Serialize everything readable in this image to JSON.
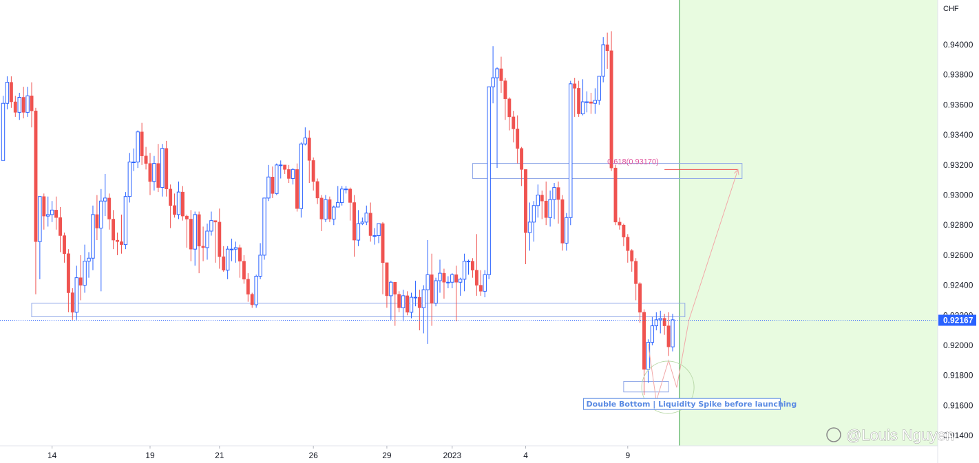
{
  "chart_data": {
    "type": "candlestick",
    "currency_label": "CHF",
    "last_price": "0.92167",
    "ylim": [
      0.914,
      0.9425
    ],
    "y_ticks": [
      "0.94000",
      "0.93800",
      "0.93600",
      "0.93400",
      "0.93200",
      "0.93000",
      "0.92800",
      "0.92600",
      "0.92400",
      "0.92200",
      "0.92000",
      "0.91800",
      "0.91600",
      "0.91400"
    ],
    "x_tick_labels": [
      {
        "label": "14",
        "bar": 12
      },
      {
        "label": "19",
        "bar": 36
      },
      {
        "label": "21",
        "bar": 53
      },
      {
        "label": "26",
        "bar": 76
      },
      {
        "label": "29",
        "bar": 94
      },
      {
        "label": "2023",
        "bar": 110
      },
      {
        "label": "4",
        "bar": 128
      },
      {
        "label": "9",
        "bar": 153
      }
    ],
    "candles": [
      [
        0.9323,
        0.9361,
        0.9323,
        0.9366
      ],
      [
        0.9361,
        0.9375,
        0.9357,
        0.9379
      ],
      [
        0.9375,
        0.9362,
        0.9358,
        0.9379
      ],
      [
        0.9362,
        0.9355,
        0.9352,
        0.9366
      ],
      [
        0.9355,
        0.9365,
        0.935,
        0.9368
      ],
      [
        0.9365,
        0.9355,
        0.9351,
        0.9372
      ],
      [
        0.9355,
        0.9366,
        0.9352,
        0.9372
      ],
      [
        0.9366,
        0.9356,
        0.9345,
        0.9375
      ],
      [
        0.9356,
        0.9269,
        0.9234,
        0.9358
      ],
      [
        0.9269,
        0.9299,
        0.9244,
        0.9299
      ],
      [
        0.9299,
        0.9286,
        0.9277,
        0.9301
      ],
      [
        0.9286,
        0.9287,
        0.9279,
        0.9299
      ],
      [
        0.9287,
        0.929,
        0.9282,
        0.9296
      ],
      [
        0.929,
        0.9285,
        0.9277,
        0.9299
      ],
      [
        0.9285,
        0.9273,
        0.9262,
        0.9292
      ],
      [
        0.9273,
        0.9261,
        0.9255,
        0.9275
      ],
      [
        0.9261,
        0.9235,
        0.9222,
        0.9264
      ],
      [
        0.9235,
        0.9222,
        0.9217,
        0.9238
      ],
      [
        0.9222,
        0.9245,
        0.9217,
        0.9253
      ],
      [
        0.9245,
        0.924,
        0.923,
        0.926
      ],
      [
        0.924,
        0.9256,
        0.9235,
        0.9267
      ],
      [
        0.9256,
        0.9258,
        0.9245,
        0.9262
      ],
      [
        0.9258,
        0.9287,
        0.925,
        0.9293
      ],
      [
        0.9287,
        0.9278,
        0.927,
        0.93
      ],
      [
        0.9278,
        0.9296,
        0.9236,
        0.9304
      ],
      [
        0.9296,
        0.9298,
        0.9286,
        0.9314
      ],
      [
        0.9298,
        0.9284,
        0.9277,
        0.9301
      ],
      [
        0.9284,
        0.927,
        0.9264,
        0.929
      ],
      [
        0.927,
        0.9269,
        0.926,
        0.9275
      ],
      [
        0.9269,
        0.9267,
        0.9261,
        0.9287
      ],
      [
        0.9267,
        0.9299,
        0.9264,
        0.9302
      ],
      [
        0.9299,
        0.9322,
        0.9295,
        0.9328
      ],
      [
        0.9322,
        0.9322,
        0.9316,
        0.9331
      ],
      [
        0.9322,
        0.9342,
        0.9318,
        0.9343
      ],
      [
        0.9342,
        0.9326,
        0.932,
        0.9348
      ],
      [
        0.9326,
        0.9321,
        0.9317,
        0.9332
      ],
      [
        0.9321,
        0.9309,
        0.93,
        0.9328
      ],
      [
        0.9309,
        0.9321,
        0.9303,
        0.9326
      ],
      [
        0.9321,
        0.9305,
        0.9302,
        0.9334
      ],
      [
        0.9305,
        0.9331,
        0.9299,
        0.9334
      ],
      [
        0.9331,
        0.9304,
        0.9299,
        0.9336
      ],
      [
        0.9304,
        0.9293,
        0.9278,
        0.9307
      ],
      [
        0.9293,
        0.9287,
        0.9285,
        0.9301
      ],
      [
        0.9287,
        0.9302,
        0.9284,
        0.9309
      ],
      [
        0.9302,
        0.9286,
        0.9283,
        0.9306
      ],
      [
        0.9286,
        0.9284,
        0.9265,
        0.9287
      ],
      [
        0.9284,
        0.9264,
        0.9256,
        0.929
      ],
      [
        0.9264,
        0.9287,
        0.9253,
        0.9289
      ],
      [
        0.9287,
        0.9266,
        0.9248,
        0.9289
      ],
      [
        0.9266,
        0.9265,
        0.9256,
        0.9279
      ],
      [
        0.9265,
        0.9276,
        0.9257,
        0.9281
      ],
      [
        0.9276,
        0.9283,
        0.9273,
        0.9289
      ],
      [
        0.9283,
        0.9282,
        0.9255,
        0.9283
      ],
      [
        0.9282,
        0.9259,
        0.9251,
        0.9291
      ],
      [
        0.9259,
        0.925,
        0.9249,
        0.9266
      ],
      [
        0.925,
        0.9264,
        0.9244,
        0.9266
      ],
      [
        0.9264,
        0.9264,
        0.9256,
        0.9271
      ],
      [
        0.9264,
        0.9265,
        0.9255,
        0.9269
      ],
      [
        0.9265,
        0.9256,
        0.9245,
        0.9267
      ],
      [
        0.9256,
        0.9244,
        0.9241,
        0.926
      ],
      [
        0.9244,
        0.9234,
        0.9229,
        0.9248
      ],
      [
        0.9234,
        0.9227,
        0.9225,
        0.9235
      ],
      [
        0.9227,
        0.9246,
        0.9225,
        0.9247
      ],
      [
        0.9246,
        0.926,
        0.9244,
        0.9268
      ],
      [
        0.926,
        0.9298,
        0.9257,
        0.9298
      ],
      [
        0.9298,
        0.9312,
        0.9296,
        0.932
      ],
      [
        0.9312,
        0.9301,
        0.9298,
        0.9319
      ],
      [
        0.9301,
        0.932,
        0.93,
        0.9321
      ],
      [
        0.932,
        0.932,
        0.9311,
        0.9323
      ],
      [
        0.932,
        0.9317,
        0.9314,
        0.932
      ],
      [
        0.9317,
        0.9311,
        0.9308,
        0.932
      ],
      [
        0.9311,
        0.9317,
        0.9307,
        0.9318
      ],
      [
        0.9317,
        0.9291,
        0.9289,
        0.9321
      ],
      [
        0.9291,
        0.9334,
        0.9285,
        0.9335
      ],
      [
        0.9334,
        0.9338,
        0.9333,
        0.9345
      ],
      [
        0.9338,
        0.9323,
        0.9308,
        0.9343
      ],
      [
        0.9323,
        0.9309,
        0.9303,
        0.9325
      ],
      [
        0.9309,
        0.9298,
        0.9294,
        0.9311
      ],
      [
        0.9298,
        0.9284,
        0.9276,
        0.93
      ],
      [
        0.9284,
        0.9297,
        0.9282,
        0.93
      ],
      [
        0.9297,
        0.9284,
        0.9282,
        0.9299
      ],
      [
        0.9284,
        0.9292,
        0.928,
        0.9293
      ],
      [
        0.9292,
        0.9295,
        0.9292,
        0.9306
      ],
      [
        0.9295,
        0.9304,
        0.9293,
        0.9306
      ],
      [
        0.9304,
        0.9304,
        0.9301,
        0.9306
      ],
      [
        0.9304,
        0.9295,
        0.9283,
        0.9305
      ],
      [
        0.9295,
        0.927,
        0.9259,
        0.93
      ],
      [
        0.927,
        0.9281,
        0.9266,
        0.929
      ],
      [
        0.9281,
        0.9282,
        0.928,
        0.9285
      ],
      [
        0.9282,
        0.9288,
        0.928,
        0.9293
      ],
      [
        0.9288,
        0.9273,
        0.9269,
        0.9295
      ],
      [
        0.9273,
        0.9273,
        0.9267,
        0.9278
      ],
      [
        0.9273,
        0.9281,
        0.9268,
        0.9281
      ],
      [
        0.9281,
        0.9255,
        0.9234,
        0.9282
      ],
      [
        0.9255,
        0.9233,
        0.9225,
        0.9255
      ],
      [
        0.9233,
        0.9242,
        0.9217,
        0.9243
      ],
      [
        0.9242,
        0.9234,
        0.9213,
        0.9242
      ],
      [
        0.9234,
        0.9225,
        0.9222,
        0.9236
      ],
      [
        0.9225,
        0.9233,
        0.9216,
        0.9237
      ],
      [
        0.9233,
        0.9222,
        0.922,
        0.9236
      ],
      [
        0.9222,
        0.9232,
        0.9218,
        0.9235
      ],
      [
        0.9232,
        0.9232,
        0.9226,
        0.9243
      ],
      [
        0.9232,
        0.9225,
        0.921,
        0.9237
      ],
      [
        0.9225,
        0.9237,
        0.9208,
        0.924
      ],
      [
        0.9237,
        0.9247,
        0.9201,
        0.927
      ],
      [
        0.9247,
        0.9228,
        0.9213,
        0.9261
      ],
      [
        0.9228,
        0.9243,
        0.9226,
        0.9245
      ],
      [
        0.9243,
        0.9248,
        0.9235,
        0.9257
      ],
      [
        0.9248,
        0.9242,
        0.9231,
        0.9251
      ],
      [
        0.9242,
        0.9242,
        0.9238,
        0.9246
      ],
      [
        0.9242,
        0.9247,
        0.9238,
        0.9248
      ],
      [
        0.9247,
        0.9242,
        0.9216,
        0.9253
      ],
      [
        0.9242,
        0.9244,
        0.9233,
        0.9245
      ],
      [
        0.9244,
        0.9256,
        0.9236,
        0.9261
      ],
      [
        0.9256,
        0.9256,
        0.9247,
        0.9257
      ],
      [
        0.9256,
        0.925,
        0.9245,
        0.9258
      ],
      [
        0.925,
        0.924,
        0.9233,
        0.9274
      ],
      [
        0.924,
        0.9236,
        0.9233,
        0.925
      ],
      [
        0.9236,
        0.9247,
        0.9232,
        0.925
      ],
      [
        0.9247,
        0.9372,
        0.9244,
        0.9372
      ],
      [
        0.9372,
        0.9378,
        0.9361,
        0.9399
      ],
      [
        0.9378,
        0.9384,
        0.9318,
        0.9385
      ],
      [
        0.9384,
        0.9376,
        0.9368,
        0.9392
      ],
      [
        0.9376,
        0.9364,
        0.935,
        0.9378
      ],
      [
        0.9364,
        0.9352,
        0.9343,
        0.9365
      ],
      [
        0.9352,
        0.9344,
        0.9335,
        0.9356
      ],
      [
        0.9344,
        0.9331,
        0.9321,
        0.9353
      ],
      [
        0.9331,
        0.9317,
        0.9306,
        0.9332
      ],
      [
        0.9317,
        0.9275,
        0.9254,
        0.9317
      ],
      [
        0.9275,
        0.9282,
        0.9263,
        0.9295
      ],
      [
        0.9282,
        0.9293,
        0.9269,
        0.9296
      ],
      [
        0.9293,
        0.93,
        0.9285,
        0.9307
      ],
      [
        0.93,
        0.9296,
        0.9284,
        0.9303
      ],
      [
        0.9296,
        0.9285,
        0.928,
        0.9309
      ],
      [
        0.9285,
        0.9297,
        0.9279,
        0.9303
      ],
      [
        0.9297,
        0.9305,
        0.9284,
        0.9308
      ],
      [
        0.9305,
        0.9297,
        0.9281,
        0.9309
      ],
      [
        0.9297,
        0.9268,
        0.9263,
        0.93
      ],
      [
        0.9268,
        0.9285,
        0.9263,
        0.9288
      ],
      [
        0.9285,
        0.9374,
        0.928,
        0.9376
      ],
      [
        0.9374,
        0.9371,
        0.9352,
        0.9378
      ],
      [
        0.9371,
        0.9354,
        0.9352,
        0.9376
      ],
      [
        0.9354,
        0.9362,
        0.9353,
        0.9377
      ],
      [
        0.9362,
        0.9362,
        0.9355,
        0.9369
      ],
      [
        0.9362,
        0.9361,
        0.9354,
        0.9368
      ],
      [
        0.9361,
        0.9363,
        0.9354,
        0.9371
      ],
      [
        0.9363,
        0.9379,
        0.936,
        0.9379
      ],
      [
        0.9379,
        0.94,
        0.9375,
        0.9405
      ],
      [
        0.94,
        0.9396,
        0.9384,
        0.9408
      ],
      [
        0.9396,
        0.9318,
        0.9316,
        0.9409
      ],
      [
        0.9318,
        0.9282,
        0.928,
        0.932
      ],
      [
        0.9282,
        0.928,
        0.9277,
        0.9285
      ],
      [
        0.928,
        0.9272,
        0.9266,
        0.9281
      ],
      [
        0.9272,
        0.9263,
        0.9255,
        0.9274
      ],
      [
        0.9263,
        0.9256,
        0.9249,
        0.9264
      ],
      [
        0.9256,
        0.9241,
        0.923,
        0.9258
      ],
      [
        0.9241,
        0.9222,
        0.9215,
        0.9242
      ],
      [
        0.9222,
        0.9184,
        0.9167,
        0.9224
      ],
      [
        0.9184,
        0.9202,
        0.9175,
        0.9204
      ],
      [
        0.9202,
        0.9213,
        0.92,
        0.9219
      ],
      [
        0.9213,
        0.9217,
        0.921,
        0.9222
      ],
      [
        0.9217,
        0.9218,
        0.9208,
        0.9223
      ],
      [
        0.9218,
        0.9213,
        0.9207,
        0.9221
      ],
      [
        0.9213,
        0.9199,
        0.9193,
        0.9222
      ],
      [
        0.9199,
        0.9217,
        0.9196,
        0.9221
      ]
    ],
    "zones": [
      {
        "y_top": 0.9228,
        "y_bottom": 0.9219,
        "bar_start": 7,
        "bar_end": 167
      },
      {
        "y_top": 0.9321,
        "y_bottom": 0.9311,
        "bar_start": 115,
        "bar_end": 181
      },
      {
        "y_top": 0.9176,
        "y_bottom": 0.9169,
        "bar_start": 152,
        "bar_end": 163
      }
    ],
    "fib_label": "0.618(0.93170)",
    "fib_value": 0.9317,
    "note": "Double Bottom | Liquidity Spike before launching",
    "projection_path": [
      [
        0.9201,
        158
      ],
      [
        0.9163,
        160
      ],
      [
        0.919,
        163
      ],
      [
        0.9172,
        165
      ],
      [
        0.9217,
        168
      ],
      [
        0.9317,
        180
      ]
    ],
    "watermark": "@Louis Nguyen",
    "colors": {
      "up": "#2962ff",
      "up_fill": "#ffffff",
      "down": "#ef5350",
      "future_zone": "#e8fbe0",
      "zone_border": "#90a8e8",
      "projection": "#f2a8a8"
    }
  }
}
